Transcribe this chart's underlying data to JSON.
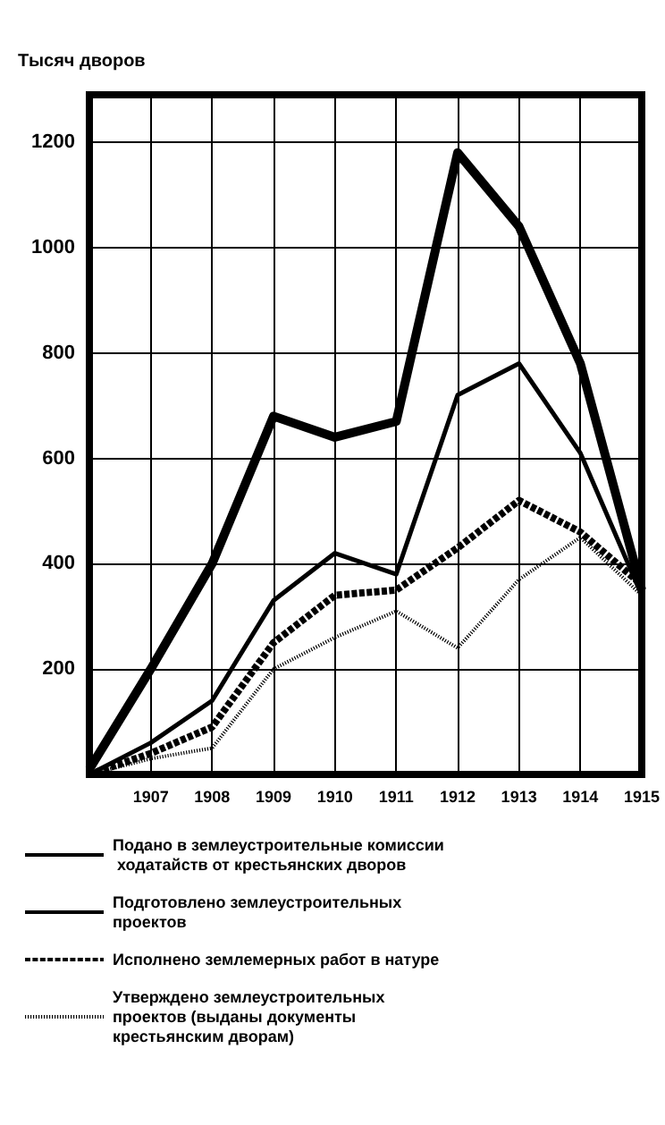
{
  "chart_data": {
    "type": "line",
    "ylabel": "Тысяч дворов",
    "categories": [
      null,
      "1907",
      "1908",
      "1909",
      "1910",
      "1911",
      "1912",
      "1913",
      "1914",
      "1915"
    ],
    "series": [
      {
        "name": "Подано в землеустроительные комиссии ходатайств от крестьянских дворов",
        "color": "#000000",
        "line_style": "solid",
        "values": [
          10,
          200,
          400,
          680,
          640,
          670,
          1180,
          1040,
          780,
          350
        ]
      },
      {
        "name": "Подготовлено землеустроительных проектов",
        "color": "#000000",
        "line_style": "solid",
        "values": [
          0,
          60,
          140,
          330,
          420,
          380,
          720,
          780,
          610,
          340
        ]
      },
      {
        "name": "Исполнено землемерных работ в натуре",
        "color": "#000000",
        "line_style": "dashed",
        "values": [
          0,
          40,
          90,
          250,
          340,
          350,
          430,
          520,
          460,
          360
        ]
      },
      {
        "name": "Утверждено землеустроительных проектов (выданы документы крестьянским дворам)",
        "color": "#000000",
        "line_style": "dotted",
        "values": [
          0,
          30,
          50,
          200,
          260,
          310,
          240,
          370,
          450,
          340
        ]
      }
    ],
    "ylim": [
      0,
      1290
    ],
    "yticks": [
      {
        "value": 0,
        "label": null
      },
      200,
      400,
      600,
      800,
      1000,
      1200
    ],
    "grid": true,
    "legend": "bottom",
    "marker": "none"
  }
}
